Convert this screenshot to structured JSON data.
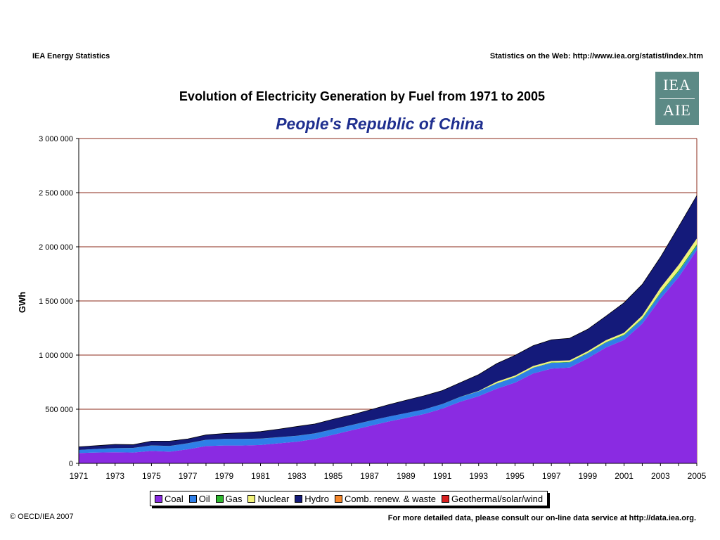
{
  "header": {
    "left": "IEA Energy Statistics",
    "right": "Statistics on the Web: http://www.iea.org/statist/index.htm"
  },
  "logo": {
    "top_text": "IEA",
    "bottom_text": "AIE"
  },
  "footer": {
    "left": "© OECD/IEA 2007",
    "right": "For more detailed data, please consult our on-line data service at http://data.iea.org."
  },
  "chart_data": {
    "type": "area",
    "stacked": true,
    "title": "Evolution of Electricity Generation by Fuel from 1971 to 2005",
    "subtitle": "People's Republic of China",
    "ylabel": "GWh",
    "xlabel": "",
    "ylim": [
      0,
      3000000
    ],
    "yticks": [
      0,
      500000,
      1000000,
      1500000,
      2000000,
      2500000,
      3000000
    ],
    "ytick_labels": [
      "0",
      "500 000",
      "1 000 000",
      "1 500 000",
      "2 000 000",
      "2 500 000",
      "3 000 000"
    ],
    "xtick_labels": [
      "1971",
      "1973",
      "1975",
      "1977",
      "1979",
      "1981",
      "1983",
      "1985",
      "1987",
      "1989",
      "1991",
      "1993",
      "1995",
      "1997",
      "1999",
      "2001",
      "2003",
      "2005"
    ],
    "grid": true,
    "legend_position": "bottom",
    "x": [
      1971,
      1972,
      1973,
      1974,
      1975,
      1976,
      1977,
      1978,
      1979,
      1980,
      1981,
      1982,
      1983,
      1984,
      1985,
      1986,
      1987,
      1988,
      1989,
      1990,
      1991,
      1992,
      1993,
      1994,
      1995,
      1996,
      1997,
      1998,
      1999,
      2000,
      2001,
      2002,
      2003,
      2004,
      2005
    ],
    "series": [
      {
        "name": "Coal",
        "color": "#8a2be2",
        "values": [
          95000,
          100000,
          102000,
          100000,
          115000,
          108000,
          130000,
          160000,
          165000,
          165000,
          170000,
          185000,
          200000,
          225000,
          265000,
          305000,
          345000,
          385000,
          420000,
          455000,
          505000,
          570000,
          620000,
          690000,
          745000,
          830000,
          875000,
          885000,
          970000,
          1070000,
          1140000,
          1290000,
          1520000,
          1720000,
          1970000
        ]
      },
      {
        "name": "Oil",
        "color": "#2f7fe8",
        "values": [
          28000,
          33000,
          38000,
          42000,
          50000,
          52000,
          55000,
          57000,
          60000,
          60000,
          58000,
          56000,
          54000,
          52000,
          50000,
          48000,
          47000,
          45000,
          44000,
          43000,
          42000,
          44000,
          45000,
          48000,
          50000,
          52000,
          53000,
          48000,
          46000,
          45000,
          43000,
          42000,
          48000,
          50000,
          38000
        ]
      },
      {
        "name": "Gas",
        "color": "#2fb82f",
        "values": [
          500,
          500,
          500,
          500,
          500,
          500,
          500,
          500,
          500,
          500,
          500,
          500,
          500,
          500,
          500,
          500,
          500,
          500,
          500,
          500,
          800,
          1000,
          1500,
          2000,
          2500,
          3000,
          3500,
          4000,
          4500,
          5000,
          6000,
          8000,
          10000,
          13000,
          15000
        ]
      },
      {
        "name": "Nuclear",
        "color": "#f2f27a",
        "values": [
          0,
          0,
          0,
          0,
          0,
          0,
          0,
          0,
          0,
          0,
          0,
          0,
          0,
          0,
          0,
          0,
          0,
          0,
          0,
          0,
          0,
          0,
          2500,
          14000,
          13000,
          14000,
          14000,
          14000,
          15000,
          17000,
          17500,
          25000,
          43000,
          50000,
          53000
        ]
      },
      {
        "name": "Hydro",
        "color": "#141a7a",
        "values": [
          29000,
          30000,
          35000,
          30000,
          40000,
          45000,
          40000,
          45000,
          50000,
          58000,
          65000,
          74000,
          86000,
          87000,
          92000,
          94000,
          100000,
          109000,
          118000,
          126000,
          124000,
          131000,
          151000,
          168000,
          187000,
          188000,
          196000,
          204000,
          203000,
          222000,
          277000,
          288000,
          283000,
          353000,
          397000
        ]
      },
      {
        "name": "Comb. renew. & waste",
        "color": "#f5872a",
        "values": [
          0,
          0,
          0,
          0,
          0,
          0,
          0,
          0,
          0,
          0,
          0,
          0,
          0,
          0,
          0,
          0,
          0,
          0,
          0,
          0,
          0,
          0,
          0,
          0,
          0,
          0,
          0,
          0,
          0,
          0,
          0,
          0,
          0,
          0,
          0
        ]
      },
      {
        "name": "Geothermal/solar/wind",
        "color": "#d81f1f",
        "values": [
          0,
          0,
          0,
          0,
          0,
          0,
          0,
          0,
          0,
          0,
          0,
          0,
          0,
          0,
          0,
          0,
          0,
          0,
          0,
          0,
          0,
          0,
          0,
          0,
          0,
          0,
          0,
          0,
          0,
          0,
          0,
          0,
          0,
          0,
          0
        ]
      }
    ]
  }
}
